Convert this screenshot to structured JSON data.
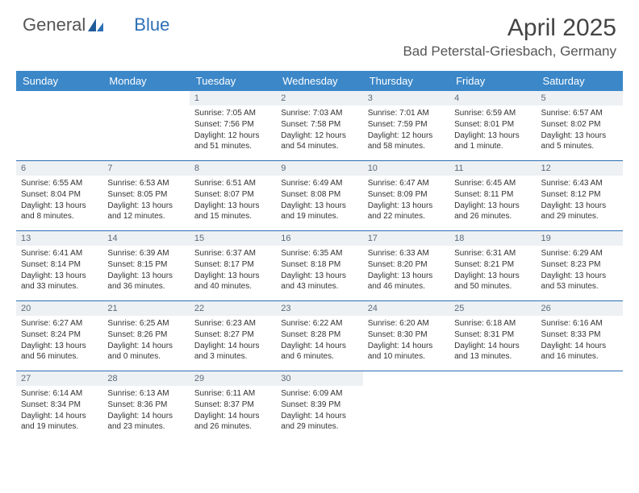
{
  "brand": {
    "part1": "General",
    "part2": "Blue"
  },
  "title": "April 2025",
  "location": "Bad Peterstal-Griesbach, Germany",
  "colors": {
    "header_bg": "#3b87c8",
    "header_text": "#ffffff",
    "daynum_bg": "#eef1f4",
    "daynum_text": "#5a6b7b",
    "week_border": "#2c6fb5",
    "text": "#333333",
    "brand_blue": "#2c6fb5"
  },
  "typography": {
    "title_fontsize": 30,
    "location_fontsize": 17,
    "dayhead_fontsize": 13,
    "daynum_fontsize": 11,
    "body_fontsize": 10
  },
  "calendar": {
    "day_names": [
      "Sunday",
      "Monday",
      "Tuesday",
      "Wednesday",
      "Thursday",
      "Friday",
      "Saturday"
    ],
    "weeks": [
      [
        null,
        null,
        {
          "n": "1",
          "sr": "Sunrise: 7:05 AM",
          "ss": "Sunset: 7:56 PM",
          "dl": "Daylight: 12 hours and 51 minutes."
        },
        {
          "n": "2",
          "sr": "Sunrise: 7:03 AM",
          "ss": "Sunset: 7:58 PM",
          "dl": "Daylight: 12 hours and 54 minutes."
        },
        {
          "n": "3",
          "sr": "Sunrise: 7:01 AM",
          "ss": "Sunset: 7:59 PM",
          "dl": "Daylight: 12 hours and 58 minutes."
        },
        {
          "n": "4",
          "sr": "Sunrise: 6:59 AM",
          "ss": "Sunset: 8:01 PM",
          "dl": "Daylight: 13 hours and 1 minute."
        },
        {
          "n": "5",
          "sr": "Sunrise: 6:57 AM",
          "ss": "Sunset: 8:02 PM",
          "dl": "Daylight: 13 hours and 5 minutes."
        }
      ],
      [
        {
          "n": "6",
          "sr": "Sunrise: 6:55 AM",
          "ss": "Sunset: 8:04 PM",
          "dl": "Daylight: 13 hours and 8 minutes."
        },
        {
          "n": "7",
          "sr": "Sunrise: 6:53 AM",
          "ss": "Sunset: 8:05 PM",
          "dl": "Daylight: 13 hours and 12 minutes."
        },
        {
          "n": "8",
          "sr": "Sunrise: 6:51 AM",
          "ss": "Sunset: 8:07 PM",
          "dl": "Daylight: 13 hours and 15 minutes."
        },
        {
          "n": "9",
          "sr": "Sunrise: 6:49 AM",
          "ss": "Sunset: 8:08 PM",
          "dl": "Daylight: 13 hours and 19 minutes."
        },
        {
          "n": "10",
          "sr": "Sunrise: 6:47 AM",
          "ss": "Sunset: 8:09 PM",
          "dl": "Daylight: 13 hours and 22 minutes."
        },
        {
          "n": "11",
          "sr": "Sunrise: 6:45 AM",
          "ss": "Sunset: 8:11 PM",
          "dl": "Daylight: 13 hours and 26 minutes."
        },
        {
          "n": "12",
          "sr": "Sunrise: 6:43 AM",
          "ss": "Sunset: 8:12 PM",
          "dl": "Daylight: 13 hours and 29 minutes."
        }
      ],
      [
        {
          "n": "13",
          "sr": "Sunrise: 6:41 AM",
          "ss": "Sunset: 8:14 PM",
          "dl": "Daylight: 13 hours and 33 minutes."
        },
        {
          "n": "14",
          "sr": "Sunrise: 6:39 AM",
          "ss": "Sunset: 8:15 PM",
          "dl": "Daylight: 13 hours and 36 minutes."
        },
        {
          "n": "15",
          "sr": "Sunrise: 6:37 AM",
          "ss": "Sunset: 8:17 PM",
          "dl": "Daylight: 13 hours and 40 minutes."
        },
        {
          "n": "16",
          "sr": "Sunrise: 6:35 AM",
          "ss": "Sunset: 8:18 PM",
          "dl": "Daylight: 13 hours and 43 minutes."
        },
        {
          "n": "17",
          "sr": "Sunrise: 6:33 AM",
          "ss": "Sunset: 8:20 PM",
          "dl": "Daylight: 13 hours and 46 minutes."
        },
        {
          "n": "18",
          "sr": "Sunrise: 6:31 AM",
          "ss": "Sunset: 8:21 PM",
          "dl": "Daylight: 13 hours and 50 minutes."
        },
        {
          "n": "19",
          "sr": "Sunrise: 6:29 AM",
          "ss": "Sunset: 8:23 PM",
          "dl": "Daylight: 13 hours and 53 minutes."
        }
      ],
      [
        {
          "n": "20",
          "sr": "Sunrise: 6:27 AM",
          "ss": "Sunset: 8:24 PM",
          "dl": "Daylight: 13 hours and 56 minutes."
        },
        {
          "n": "21",
          "sr": "Sunrise: 6:25 AM",
          "ss": "Sunset: 8:26 PM",
          "dl": "Daylight: 14 hours and 0 minutes."
        },
        {
          "n": "22",
          "sr": "Sunrise: 6:23 AM",
          "ss": "Sunset: 8:27 PM",
          "dl": "Daylight: 14 hours and 3 minutes."
        },
        {
          "n": "23",
          "sr": "Sunrise: 6:22 AM",
          "ss": "Sunset: 8:28 PM",
          "dl": "Daylight: 14 hours and 6 minutes."
        },
        {
          "n": "24",
          "sr": "Sunrise: 6:20 AM",
          "ss": "Sunset: 8:30 PM",
          "dl": "Daylight: 14 hours and 10 minutes."
        },
        {
          "n": "25",
          "sr": "Sunrise: 6:18 AM",
          "ss": "Sunset: 8:31 PM",
          "dl": "Daylight: 14 hours and 13 minutes."
        },
        {
          "n": "26",
          "sr": "Sunrise: 6:16 AM",
          "ss": "Sunset: 8:33 PM",
          "dl": "Daylight: 14 hours and 16 minutes."
        }
      ],
      [
        {
          "n": "27",
          "sr": "Sunrise: 6:14 AM",
          "ss": "Sunset: 8:34 PM",
          "dl": "Daylight: 14 hours and 19 minutes."
        },
        {
          "n": "28",
          "sr": "Sunrise: 6:13 AM",
          "ss": "Sunset: 8:36 PM",
          "dl": "Daylight: 14 hours and 23 minutes."
        },
        {
          "n": "29",
          "sr": "Sunrise: 6:11 AM",
          "ss": "Sunset: 8:37 PM",
          "dl": "Daylight: 14 hours and 26 minutes."
        },
        {
          "n": "30",
          "sr": "Sunrise: 6:09 AM",
          "ss": "Sunset: 8:39 PM",
          "dl": "Daylight: 14 hours and 29 minutes."
        },
        null,
        null,
        null
      ]
    ]
  }
}
